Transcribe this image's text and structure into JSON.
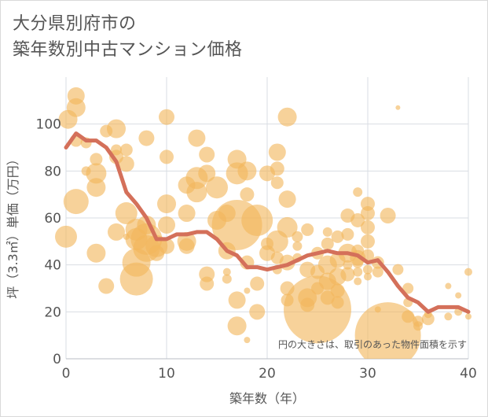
{
  "title_line1": "大分県別府市の",
  "title_line2": "築年数別中古マンション価格",
  "chart_data": {
    "type": "scatter",
    "xlabel": "築年数（年）",
    "ylabel": "坪（3.3㎡）単価（万円）",
    "xlim": [
      0,
      40
    ],
    "ylim": [
      0,
      120
    ],
    "x_ticks": [
      0,
      10,
      20,
      30,
      40
    ],
    "y_ticks": [
      0,
      20,
      40,
      60,
      80,
      100
    ],
    "grid": true,
    "note": "円の大きさは、取引のあった物件面積を示す",
    "colors": {
      "bubble": "#f2b75c",
      "line": "#d4705a",
      "grid": "#d9dde3",
      "text": "#555555"
    },
    "points": [
      [
        0.2,
        102,
        12
      ],
      [
        0,
        52,
        14
      ],
      [
        1,
        107,
        12
      ],
      [
        1,
        112,
        11
      ],
      [
        1,
        67,
        16
      ],
      [
        1,
        93,
        8
      ],
      [
        2,
        92,
        7
      ],
      [
        2,
        80,
        6
      ],
      [
        3,
        85,
        8
      ],
      [
        3,
        79,
        13
      ],
      [
        3,
        73,
        12
      ],
      [
        3,
        45,
        12
      ],
      [
        4,
        31,
        10
      ],
      [
        4,
        97,
        8
      ],
      [
        5,
        98,
        12
      ],
      [
        5,
        89,
        7
      ],
      [
        5,
        86,
        9
      ],
      [
        5,
        54,
        11
      ],
      [
        6,
        89,
        8
      ],
      [
        6,
        83,
        10
      ],
      [
        6,
        62,
        14
      ],
      [
        6,
        52,
        4
      ],
      [
        7,
        55,
        14
      ],
      [
        7,
        51,
        14
      ],
      [
        7,
        41,
        18
      ],
      [
        7,
        34,
        21
      ],
      [
        8,
        94,
        10
      ],
      [
        8,
        51,
        20
      ],
      [
        8,
        47,
        17
      ],
      [
        8,
        57,
        12
      ],
      [
        9,
        48,
        14
      ],
      [
        9,
        45,
        10
      ],
      [
        10,
        103,
        10
      ],
      [
        10,
        86,
        9
      ],
      [
        10,
        66,
        12
      ],
      [
        10,
        57,
        11
      ],
      [
        10,
        48,
        10
      ],
      [
        12,
        74,
        11
      ],
      [
        12,
        62,
        11
      ],
      [
        12,
        50,
        12
      ],
      [
        12,
        48,
        10
      ],
      [
        13,
        77,
        14
      ],
      [
        13,
        71,
        13
      ],
      [
        13,
        94,
        11
      ],
      [
        14,
        79,
        11
      ],
      [
        14,
        87,
        10
      ],
      [
        14,
        36,
        10
      ],
      [
        14,
        32,
        9
      ],
      [
        15,
        73,
        14
      ],
      [
        15,
        59,
        12
      ],
      [
        16,
        46,
        11
      ],
      [
        16,
        62,
        11
      ],
      [
        16,
        37,
        5
      ],
      [
        16,
        34,
        6
      ],
      [
        17,
        85,
        12
      ],
      [
        17,
        79,
        14
      ],
      [
        17,
        57,
        32
      ],
      [
        17,
        25,
        11
      ],
      [
        17,
        14,
        12
      ],
      [
        18,
        80,
        12
      ],
      [
        18,
        70,
        9
      ],
      [
        18,
        41,
        9
      ],
      [
        18,
        29,
        4
      ],
      [
        18,
        8,
        4
      ],
      [
        19,
        59,
        20
      ],
      [
        19,
        32,
        9
      ],
      [
        19,
        20,
        10
      ],
      [
        20,
        79,
        10
      ],
      [
        20,
        49,
        8
      ],
      [
        20,
        45,
        10
      ],
      [
        21,
        88,
        11
      ],
      [
        21,
        81,
        9
      ],
      [
        21,
        75,
        8
      ],
      [
        21,
        50,
        14
      ],
      [
        21,
        43,
        8
      ],
      [
        21,
        38,
        6
      ],
      [
        22,
        103,
        12
      ],
      [
        22,
        68,
        11
      ],
      [
        22,
        56,
        13
      ],
      [
        22,
        41,
        10
      ],
      [
        22,
        30,
        9
      ],
      [
        22,
        25,
        8
      ],
      [
        23,
        52,
        7
      ],
      [
        23,
        48,
        6
      ],
      [
        23,
        43,
        6
      ],
      [
        24,
        55,
        8
      ],
      [
        24,
        38,
        10
      ],
      [
        24,
        26,
        12
      ],
      [
        24,
        23,
        9
      ],
      [
        25,
        45,
        8
      ],
      [
        25,
        37,
        9
      ],
      [
        25,
        30,
        8
      ],
      [
        25,
        21,
        43
      ],
      [
        26,
        54,
        6
      ],
      [
        26,
        49,
        8
      ],
      [
        26,
        40,
        12
      ],
      [
        26,
        33,
        11
      ],
      [
        26,
        26,
        9
      ],
      [
        27,
        52,
        8
      ],
      [
        27,
        42,
        10
      ],
      [
        27,
        35,
        11
      ],
      [
        27,
        29,
        9
      ],
      [
        27,
        24,
        8
      ],
      [
        28,
        61,
        9
      ],
      [
        28,
        53,
        8
      ],
      [
        28,
        45,
        12
      ],
      [
        28,
        40,
        6
      ],
      [
        28,
        36,
        9
      ],
      [
        29,
        71,
        6
      ],
      [
        29,
        59,
        9
      ],
      [
        29,
        46,
        8
      ],
      [
        29,
        43,
        10
      ],
      [
        29,
        41,
        7
      ],
      [
        29,
        37,
        6
      ],
      [
        29,
        33,
        5
      ],
      [
        30,
        66,
        9
      ],
      [
        30,
        62,
        9
      ],
      [
        30,
        56,
        9
      ],
      [
        30,
        50,
        9
      ],
      [
        30,
        44,
        8
      ],
      [
        30,
        38,
        6
      ],
      [
        30,
        35,
        5
      ],
      [
        31,
        41,
        8
      ],
      [
        31,
        37,
        7
      ],
      [
        31,
        21,
        4
      ],
      [
        32,
        61,
        10
      ],
      [
        32,
        10,
        42
      ],
      [
        33,
        107,
        3
      ],
      [
        33,
        38,
        7
      ],
      [
        34,
        30,
        7
      ],
      [
        34,
        24,
        6
      ],
      [
        34,
        18,
        8
      ],
      [
        35,
        16,
        7
      ],
      [
        35,
        14,
        6
      ],
      [
        36,
        19,
        5
      ],
      [
        36,
        17,
        8
      ],
      [
        38,
        18,
        5
      ],
      [
        38,
        31,
        4
      ],
      [
        39,
        20,
        5
      ],
      [
        39,
        27,
        4
      ],
      [
        40,
        37,
        5
      ],
      [
        40,
        18,
        4
      ]
    ],
    "avg_x": [
      0,
      1,
      2,
      3,
      4,
      5,
      6,
      7,
      8,
      9,
      10,
      11,
      12,
      13,
      14,
      15,
      16,
      17,
      18,
      19,
      20,
      21,
      22,
      23,
      24,
      25,
      26,
      27,
      28,
      29,
      30,
      31,
      32,
      33,
      34,
      35,
      36,
      37,
      38,
      39,
      40
    ],
    "avg_y": [
      90,
      96,
      93,
      93,
      90,
      84,
      71,
      66,
      60,
      51,
      51,
      53,
      53,
      54,
      54,
      51,
      46,
      44,
      39,
      39,
      38,
      39,
      40,
      42,
      44,
      45,
      46,
      45,
      45,
      44,
      41,
      42,
      37,
      31,
      26,
      24,
      20,
      22,
      22,
      22,
      20
    ]
  }
}
